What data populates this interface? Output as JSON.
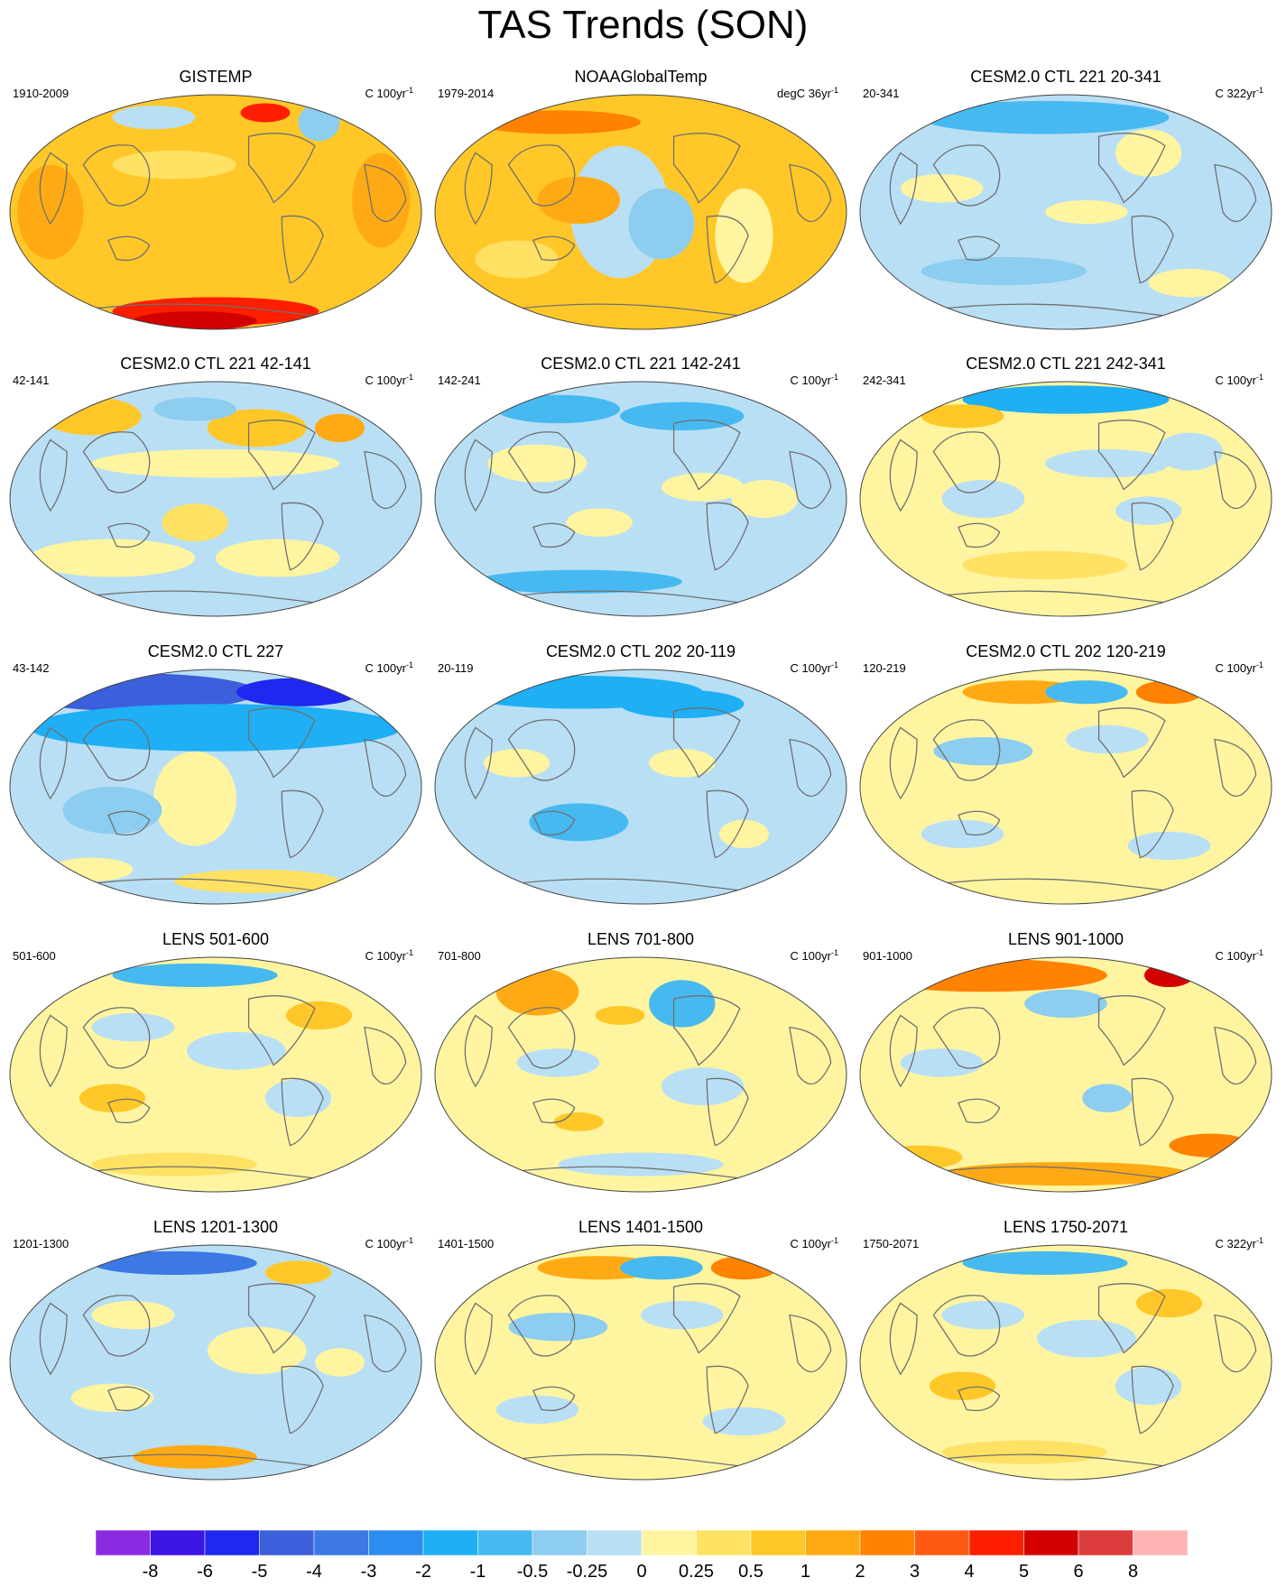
{
  "title": "TAS Trends (SON)",
  "panels": [
    {
      "title": "GISTEMP",
      "period": "1910-2009",
      "units": "C 100yr",
      "units_sup": "-1",
      "pattern": "warm_obs"
    },
    {
      "title": "NOAAGlobalTemp",
      "period": "1979-2014",
      "units": "degC 36yr",
      "units_sup": "-1",
      "pattern": "warm_recent"
    },
    {
      "title": "CESM2.0 CTL 221 20-341",
      "period": "20-341",
      "units": "C 322yr",
      "units_sup": "-1",
      "pattern": "neutral_cool"
    },
    {
      "title": "CESM2.0 CTL 221 42-141",
      "period": "42-141",
      "units": "C 100yr",
      "units_sup": "-1",
      "pattern": "mixed_warm"
    },
    {
      "title": "CESM2.0 CTL 221 142-241",
      "period": "142-241",
      "units": "C 100yr",
      "units_sup": "-1",
      "pattern": "mixed_cool"
    },
    {
      "title": "CESM2.0 CTL 221 242-341",
      "period": "242-341",
      "units": "C 100yr",
      "units_sup": "-1",
      "pattern": "mixed_arctic_cool"
    },
    {
      "title": "CESM2.0 CTL 227",
      "period": "43-142",
      "units": "C 100yr",
      "units_sup": "-1",
      "pattern": "strong_cool_north"
    },
    {
      "title": "CESM2.0 CTL 202 20-119",
      "period": "20-119",
      "units": "C 100yr",
      "units_sup": "-1",
      "pattern": "cool_north"
    },
    {
      "title": "CESM2.0 CTL 202 120-219",
      "period": "120-219",
      "units": "C 100yr",
      "units_sup": "-1",
      "pattern": "mixed_warm_arctic"
    },
    {
      "title": "LENS 501-600",
      "period": "501-600",
      "units": "C 100yr",
      "units_sup": "-1",
      "pattern": "mixed"
    },
    {
      "title": "LENS 701-800",
      "period": "701-800",
      "units": "C 100yr",
      "units_sup": "-1",
      "pattern": "mixed_warm_nw"
    },
    {
      "title": "LENS 901-1000",
      "period": "901-1000",
      "units": "C 100yr",
      "units_sup": "-1",
      "pattern": "warm_arctic"
    },
    {
      "title": "LENS 1201-1300",
      "period": "1201-1300",
      "units": "C 100yr",
      "units_sup": "-1",
      "pattern": "mixed_cool_arctic"
    },
    {
      "title": "LENS 1401-1500",
      "period": "1401-1500",
      "units": "C 100yr",
      "units_sup": "-1",
      "pattern": "mixed_warm_arctic"
    },
    {
      "title": "LENS 1750-2071",
      "period": "1750-2071",
      "units": "C 322yr",
      "units_sup": "-1",
      "pattern": "mixed"
    }
  ],
  "colorbar": {
    "labels": [
      "-8",
      "-6",
      "-5",
      "-4",
      "-3",
      "-2",
      "-1",
      "-0.5",
      "-0.25",
      "0",
      "0.25",
      "0.5",
      "1",
      "2",
      "3",
      "4",
      "5",
      "6",
      "8"
    ],
    "colors": [
      "#8a2be2",
      "#3c14e6",
      "#1e28f0",
      "#3c5fdc",
      "#3c78e6",
      "#2d8cf0",
      "#1eaff5",
      "#46b9f0",
      "#8ccdf0",
      "#b9dff5",
      "#fff5a0",
      "#ffe164",
      "#ffc828",
      "#ffaa14",
      "#ff8200",
      "#ff5a14",
      "#ff1e00",
      "#d20000",
      "#dc3c3c",
      "#ffb4b4"
    ]
  }
}
